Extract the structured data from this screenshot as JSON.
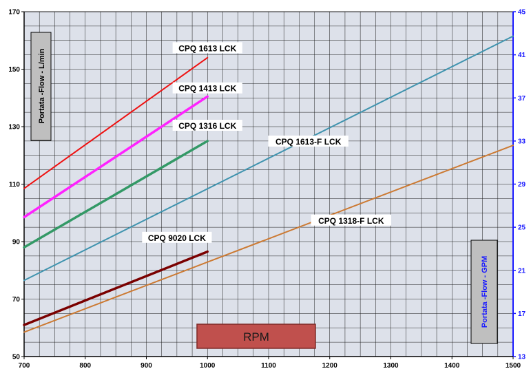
{
  "chart_data": {
    "type": "line",
    "xlabel": "RPM",
    "ylabel": "Portata -Flow  - L/min",
    "y2label": "Portata -Flow -   GPM",
    "xlim": [
      700,
      1500
    ],
    "ylim": [
      50,
      170
    ],
    "y2lim": [
      13,
      45
    ],
    "x_ticks": [
      "700",
      "800",
      "900",
      "1000",
      "1100",
      "1200",
      "1300",
      "1400",
      "1500"
    ],
    "y_ticks": [
      "50",
      "70",
      "90",
      "110",
      "130",
      "150",
      "170"
    ],
    "y2_ticks": [
      "13",
      "17",
      "21",
      "25",
      "29",
      "33",
      "37",
      "41",
      "45"
    ],
    "grid": true,
    "series": [
      {
        "name": "CPQ 1613 LCK",
        "color": "#ee1111",
        "width": 2,
        "x": [
          700,
          1000
        ],
        "y": [
          108.5,
          154
        ]
      },
      {
        "name": "CPQ 1413 LCK",
        "color": "#ff22ff",
        "width": 3.5,
        "x": [
          700,
          1000
        ],
        "y": [
          98.5,
          140.5
        ]
      },
      {
        "name": "CPQ 1316 LCK",
        "color": "#339966",
        "width": 3.5,
        "x": [
          700,
          1000
        ],
        "y": [
          88,
          125
        ]
      },
      {
        "name": "CPQ 9020 LCK",
        "color": "#7a0000",
        "width": 3.5,
        "x": [
          700,
          1000
        ],
        "y": [
          61,
          86.5
        ]
      },
      {
        "name": "CPQ 1613-F LCK",
        "color": "#3f93ae",
        "width": 2,
        "x": [
          700,
          1500
        ],
        "y": [
          76.5,
          161.5
        ]
      },
      {
        "name": "CPQ 1318-F LCK",
        "color": "#cc7a33",
        "width": 2,
        "x": [
          700,
          1500
        ],
        "y": [
          58.5,
          123.5
        ]
      }
    ],
    "series_labels": [
      {
        "text": "CPQ 1613 LCK",
        "x": 1000,
        "y": 157
      },
      {
        "text": "CPQ 1413 LCK",
        "x": 1000,
        "y": 143
      },
      {
        "text": "CPQ 1316 LCK",
        "x": 1000,
        "y": 130
      },
      {
        "text": "CPQ 9020 LCK",
        "x": 950,
        "y": 91
      },
      {
        "text": "CPQ 1613-F LCK",
        "x": 1165,
        "y": 124.5
      },
      {
        "text": "CPQ 1318-F LCK",
        "x": 1235,
        "y": 97
      }
    ],
    "colors": {
      "plot_bg": "#dde1ea",
      "grid": "#1a1a1a",
      "left_axis": "#000000",
      "right_axis": "#1a1aff",
      "axis_box": "#bfbfbf",
      "rpm_box": "#c0504d",
      "rpm_box_border": "#7f2b28"
    }
  }
}
